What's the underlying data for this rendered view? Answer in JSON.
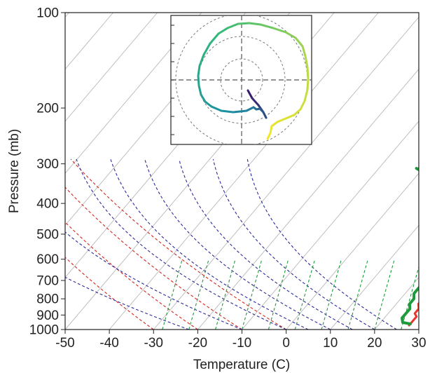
{
  "chart_data": {
    "type": "line",
    "subtype": "skew-t log-p diagram with hodograph inset",
    "xlabel": "Temperature (C)",
    "ylabel": "Pressure (mb)",
    "xlim": [
      -50,
      30
    ],
    "ylim": [
      1000,
      100
    ],
    "y_scale": "log",
    "x_ticks": [
      -50,
      -40,
      -30,
      -20,
      -10,
      0,
      10,
      20,
      30
    ],
    "y_ticks": [
      100,
      200,
      300,
      400,
      500,
      600,
      700,
      800,
      900,
      1000
    ],
    "skewed_isotherms": true,
    "series": [
      {
        "color": "#e8372a",
        "points": [
          [
            -1.0,
            310
          ],
          [
            2,
            320
          ],
          [
            4,
            335
          ],
          [
            7,
            350
          ],
          [
            9,
            370
          ],
          [
            12,
            400
          ],
          [
            13,
            420
          ],
          [
            15,
            440
          ],
          [
            16,
            460
          ],
          [
            17,
            480
          ],
          [
            17,
            500
          ],
          [
            19,
            520
          ],
          [
            20,
            540
          ],
          [
            20,
            560
          ],
          [
            21,
            580
          ],
          [
            22,
            600
          ],
          [
            22,
            620
          ],
          [
            23,
            650
          ],
          [
            23,
            690
          ],
          [
            24,
            730
          ],
          [
            24,
            770
          ],
          [
            25,
            800
          ],
          [
            25,
            830
          ],
          [
            26,
            860
          ],
          [
            26,
            890
          ],
          [
            27,
            910
          ],
          [
            27,
            940
          ],
          [
            27,
            970
          ]
        ]
      },
      {
        "color": "#1e9a3c",
        "points": [
          [
            -1.5,
            310
          ],
          [
            1,
            320
          ],
          [
            3,
            335
          ],
          [
            5,
            350
          ],
          [
            8,
            370
          ],
          [
            10,
            400
          ],
          [
            12,
            420
          ],
          [
            13,
            440
          ],
          [
            14,
            460
          ],
          [
            15,
            480
          ],
          [
            15,
            500
          ],
          [
            16,
            520
          ],
          [
            17,
            540
          ],
          [
            18,
            560
          ],
          [
            18,
            580
          ],
          [
            19,
            600
          ],
          [
            20,
            620
          ],
          [
            21,
            650
          ],
          [
            21,
            690
          ],
          [
            22,
            730
          ],
          [
            22,
            770
          ],
          [
            23,
            800
          ],
          [
            23,
            830
          ],
          [
            24,
            860
          ],
          [
            24,
            890
          ],
          [
            24,
            920
          ],
          [
            25,
            950
          ],
          [
            27,
            960
          ]
        ]
      }
    ],
    "reference_lines": {
      "dry_adiabats": {
        "color": "#d4261c",
        "surface_temps_C": [
          -30,
          -20,
          -10,
          0
        ]
      },
      "moist_adiabats": {
        "color": "#2a2a9c",
        "surface_temps_C": [
          -22,
          -10,
          0,
          5,
          10,
          15,
          20,
          25
        ]
      },
      "mixing_ratio": {
        "color": "#1e9a3c"
      }
    },
    "hodograph_inset": {
      "grid": "dashed concentric rings with crosshair axes",
      "line_colormap": [
        "#3b1f6e",
        "#1c8fa5",
        "#2fb87a",
        "#b6d94a",
        "#f2e628"
      ]
    }
  }
}
